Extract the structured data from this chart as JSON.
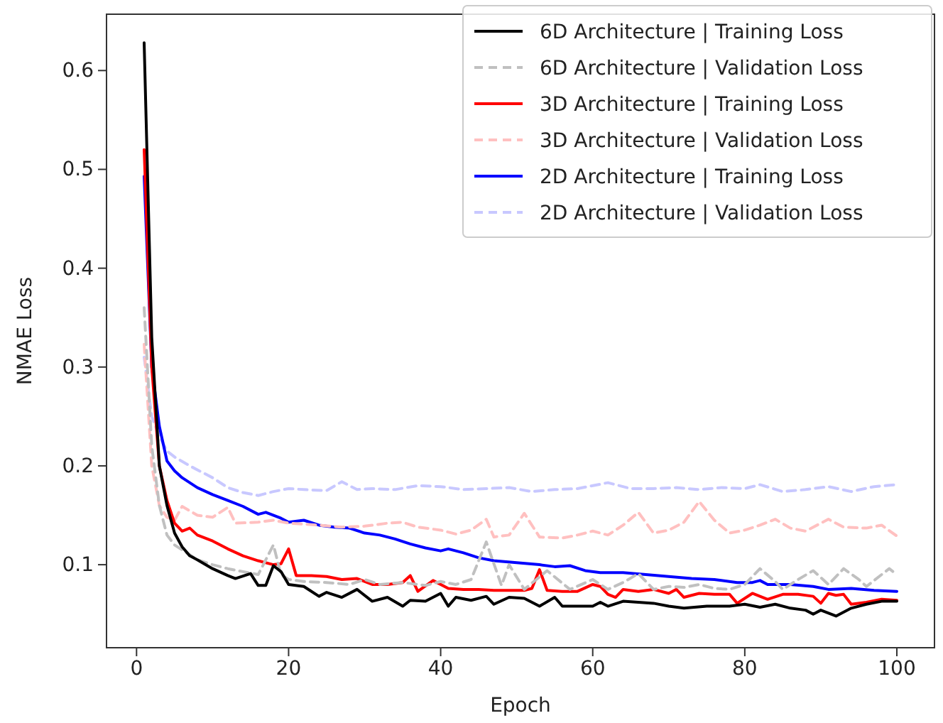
{
  "chart_data": {
    "type": "line",
    "xlabel": "Epoch",
    "ylabel": "NMAE Loss",
    "xlim": [
      -3.95,
      104.95
    ],
    "ylim": [
      0.016,
      0.657
    ],
    "xticks": [
      0,
      20,
      40,
      60,
      80,
      100
    ],
    "yticks": [
      0.1,
      0.2,
      0.3,
      0.4,
      0.5,
      0.6
    ],
    "legend": "top right",
    "line_style": "solid",
    "series": [
      {
        "name": "6D Architecture | Training Loss",
        "color": "#000000",
        "x": [
          1,
          2,
          3,
          4,
          5,
          6,
          7,
          8,
          10,
          12,
          13,
          15,
          16,
          17,
          18,
          19,
          20,
          22,
          24,
          25,
          27,
          29,
          31,
          33,
          35,
          36,
          38,
          40,
          41,
          42,
          44,
          46,
          47,
          49,
          51,
          53,
          55,
          56,
          58,
          60,
          61,
          62,
          64,
          66,
          68,
          70,
          72,
          75,
          78,
          80,
          82,
          84,
          86,
          88,
          89,
          90,
          92,
          94,
          96,
          98,
          100
        ],
        "values": [
          0.628,
          0.33,
          0.2,
          0.16,
          0.132,
          0.118,
          0.109,
          0.105,
          0.096,
          0.089,
          0.086,
          0.091,
          0.079,
          0.079,
          0.099,
          0.093,
          0.08,
          0.078,
          0.068,
          0.072,
          0.067,
          0.075,
          0.063,
          0.067,
          0.058,
          0.064,
          0.063,
          0.071,
          0.058,
          0.067,
          0.064,
          0.068,
          0.06,
          0.067,
          0.066,
          0.058,
          0.067,
          0.058,
          0.058,
          0.058,
          0.062,
          0.058,
          0.063,
          0.062,
          0.061,
          0.058,
          0.056,
          0.058,
          0.058,
          0.06,
          0.057,
          0.06,
          0.056,
          0.054,
          0.05,
          0.054,
          0.048,
          0.056,
          0.06,
          0.063,
          0.063
        ]
      },
      {
        "name": "6D Architecture | Validation Loss",
        "color": "#c0c0c0",
        "line_style": "dashed",
        "x": [
          1,
          2,
          3,
          4,
          5,
          6,
          8,
          10,
          12,
          14,
          16,
          18,
          19,
          20,
          22,
          25,
          28,
          30,
          32,
          35,
          38,
          40,
          42,
          44,
          46,
          48,
          49,
          51,
          54,
          57,
          60,
          62,
          64,
          66,
          68,
          70,
          72,
          74,
          76,
          78,
          80,
          82,
          84,
          85,
          87,
          89,
          91,
          93,
          95,
          96,
          98,
          99,
          100
        ],
        "values": [
          0.36,
          0.22,
          0.16,
          0.13,
          0.12,
          0.115,
          0.105,
          0.1,
          0.096,
          0.093,
          0.09,
          0.12,
          0.09,
          0.085,
          0.083,
          0.082,
          0.08,
          0.085,
          0.08,
          0.082,
          0.079,
          0.083,
          0.08,
          0.085,
          0.123,
          0.079,
          0.1,
          0.075,
          0.094,
          0.075,
          0.085,
          0.075,
          0.082,
          0.091,
          0.075,
          0.078,
          0.077,
          0.08,
          0.076,
          0.075,
          0.08,
          0.096,
          0.083,
          0.075,
          0.085,
          0.094,
          0.08,
          0.096,
          0.085,
          0.078,
          0.09,
          0.096,
          0.09
        ]
      },
      {
        "name": "3D Architecture | Training Loss",
        "color": "#ff0000",
        "x": [
          1,
          2,
          3,
          4,
          5,
          6,
          7,
          8,
          10,
          12,
          14,
          16,
          18,
          19,
          20,
          21,
          23,
          25,
          27,
          29,
          31,
          33,
          35,
          36,
          37,
          39,
          41,
          43,
          45,
          47,
          49,
          51,
          52,
          53,
          54,
          56,
          58,
          60,
          61,
          62,
          63,
          64,
          66,
          68,
          70,
          71,
          72,
          74,
          76,
          78,
          79,
          81,
          83,
          85,
          87,
          89,
          90,
          91,
          92,
          93,
          94,
          96,
          98,
          100
        ],
        "values": [
          0.52,
          0.3,
          0.2,
          0.165,
          0.142,
          0.134,
          0.137,
          0.13,
          0.124,
          0.116,
          0.109,
          0.104,
          0.1,
          0.101,
          0.116,
          0.089,
          0.089,
          0.088,
          0.085,
          0.086,
          0.08,
          0.08,
          0.082,
          0.089,
          0.073,
          0.084,
          0.076,
          0.075,
          0.075,
          0.074,
          0.074,
          0.074,
          0.076,
          0.095,
          0.074,
          0.073,
          0.073,
          0.08,
          0.078,
          0.07,
          0.067,
          0.075,
          0.073,
          0.075,
          0.071,
          0.075,
          0.067,
          0.071,
          0.07,
          0.07,
          0.061,
          0.071,
          0.065,
          0.07,
          0.07,
          0.068,
          0.061,
          0.071,
          0.069,
          0.07,
          0.06,
          0.062,
          0.065,
          0.064
        ]
      },
      {
        "name": "3D Architecture | Validation Loss",
        "color": "#ffc0c0",
        "line_style": "dashed",
        "x": [
          1,
          2,
          3,
          4,
          5,
          6,
          8,
          10,
          12,
          13,
          16,
          18,
          20,
          22,
          24,
          27,
          30,
          33,
          35,
          37,
          40,
          42,
          44,
          46,
          47,
          49,
          51,
          53,
          56,
          58,
          60,
          62,
          64,
          66,
          68,
          70,
          72,
          74,
          76,
          78,
          80,
          82,
          84,
          86,
          88,
          90,
          91,
          93,
          96,
          98,
          100
        ],
        "values": [
          0.323,
          0.2,
          0.16,
          0.148,
          0.145,
          0.159,
          0.15,
          0.148,
          0.158,
          0.142,
          0.143,
          0.145,
          0.142,
          0.141,
          0.14,
          0.138,
          0.139,
          0.142,
          0.143,
          0.138,
          0.135,
          0.131,
          0.135,
          0.146,
          0.128,
          0.13,
          0.152,
          0.128,
          0.127,
          0.13,
          0.134,
          0.13,
          0.14,
          0.153,
          0.132,
          0.135,
          0.143,
          0.164,
          0.145,
          0.132,
          0.135,
          0.14,
          0.146,
          0.137,
          0.134,
          0.142,
          0.146,
          0.138,
          0.137,
          0.14,
          0.129
        ]
      },
      {
        "name": "2D Architecture | Training Loss",
        "color": "#0000ff",
        "x": [
          1,
          2,
          3,
          4,
          5,
          6,
          7,
          8,
          10,
          12,
          14,
          16,
          17,
          19,
          20,
          22,
          24,
          26,
          28,
          30,
          32,
          34,
          36,
          38,
          40,
          41,
          43,
          45,
          47,
          50,
          53,
          55,
          57,
          59,
          61,
          64,
          67,
          70,
          73,
          76,
          79,
          81,
          82,
          83,
          86,
          89,
          91,
          94,
          97,
          100
        ],
        "values": [
          0.493,
          0.3,
          0.24,
          0.205,
          0.195,
          0.188,
          0.183,
          0.178,
          0.171,
          0.165,
          0.159,
          0.151,
          0.153,
          0.147,
          0.143,
          0.145,
          0.14,
          0.138,
          0.137,
          0.132,
          0.13,
          0.126,
          0.121,
          0.117,
          0.114,
          0.116,
          0.112,
          0.107,
          0.104,
          0.102,
          0.1,
          0.098,
          0.099,
          0.094,
          0.092,
          0.092,
          0.09,
          0.088,
          0.086,
          0.085,
          0.082,
          0.082,
          0.084,
          0.08,
          0.08,
          0.078,
          0.075,
          0.076,
          0.074,
          0.073
        ]
      },
      {
        "name": "2D Architecture | Validation Loss",
        "color": "#c8c8ff",
        "line_style": "dashed",
        "x": [
          1,
          2,
          3,
          4,
          5,
          7,
          10,
          12,
          14,
          16,
          18,
          20,
          22,
          25,
          27,
          29,
          31,
          34,
          37,
          40,
          43,
          46,
          49,
          52,
          55,
          58,
          62,
          65,
          68,
          71,
          74,
          77,
          80,
          82,
          85,
          88,
          91,
          94,
          97,
          100
        ],
        "values": [
          0.31,
          0.25,
          0.23,
          0.215,
          0.209,
          0.2,
          0.188,
          0.178,
          0.173,
          0.17,
          0.174,
          0.177,
          0.176,
          0.175,
          0.184,
          0.176,
          0.177,
          0.176,
          0.18,
          0.179,
          0.176,
          0.177,
          0.178,
          0.174,
          0.176,
          0.177,
          0.183,
          0.177,
          0.177,
          0.178,
          0.176,
          0.178,
          0.177,
          0.181,
          0.174,
          0.176,
          0.179,
          0.174,
          0.179,
          0.181
        ]
      }
    ]
  }
}
